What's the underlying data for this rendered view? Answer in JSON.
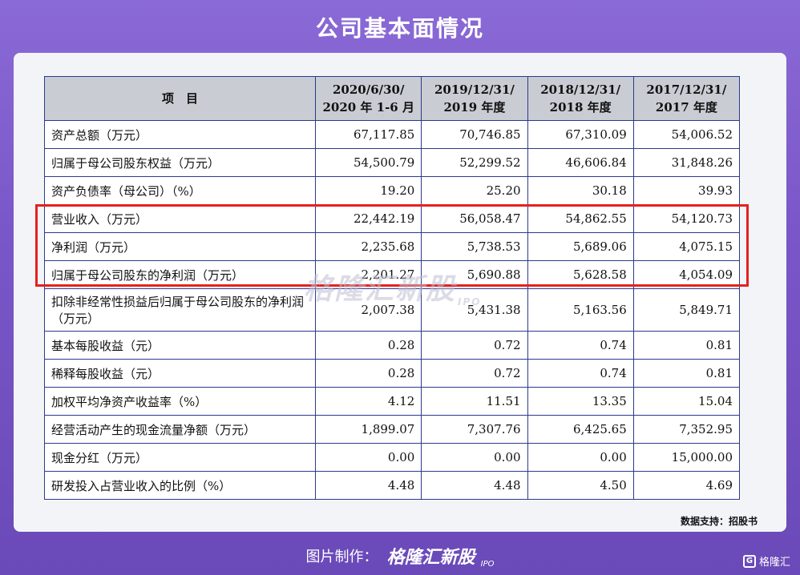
{
  "title": "公司基本面情况",
  "table": {
    "header": {
      "item": "项　目",
      "cols": [
        {
          "l1": "2020/6/30/",
          "l2": "2020 年 1-6 月"
        },
        {
          "l1": "2019/12/31/",
          "l2": "2019 年度"
        },
        {
          "l1": "2018/12/31/",
          "l2": "2018 年度"
        },
        {
          "l1": "2017/12/31/",
          "l2": "2017 年度"
        }
      ]
    },
    "rows": [
      {
        "label": "资产总额（万元）",
        "values": [
          "67,117.85",
          "70,746.85",
          "67,310.09",
          "54,006.52"
        ]
      },
      {
        "label": "归属于母公司股东权益（万元）",
        "values": [
          "54,500.79",
          "52,299.52",
          "46,606.84",
          "31,848.26"
        ]
      },
      {
        "label": "资产负债率（母公司）（%）",
        "values": [
          "19.20",
          "25.20",
          "30.18",
          "39.93"
        ]
      },
      {
        "label": "营业收入（万元）",
        "values": [
          "22,442.19",
          "56,058.47",
          "54,862.55",
          "54,120.73"
        ]
      },
      {
        "label": "净利润（万元）",
        "values": [
          "2,235.68",
          "5,738.53",
          "5,689.06",
          "4,075.15"
        ]
      },
      {
        "label": "归属于母公司股东的净利润（万元）",
        "values": [
          "2,201.27",
          "5,690.88",
          "5,628.58",
          "4,054.09"
        ]
      },
      {
        "label": "扣除非经常性损益后归属于母公司股东的净利润（万元）",
        "values": [
          "2,007.38",
          "5,431.38",
          "5,163.56",
          "5,849.71"
        ]
      },
      {
        "label": "基本每股收益（元）",
        "values": [
          "0.28",
          "0.72",
          "0.74",
          "0.81"
        ]
      },
      {
        "label": "稀释每股收益（元）",
        "values": [
          "0.28",
          "0.72",
          "0.74",
          "0.81"
        ]
      },
      {
        "label": "加权平均净资产收益率（%）",
        "values": [
          "4.12",
          "11.51",
          "13.35",
          "15.04"
        ]
      },
      {
        "label": "经营活动产生的现金流量净额（万元）",
        "values": [
          "1,899.07",
          "7,307.76",
          "6,425.65",
          "7,352.95"
        ]
      },
      {
        "label": "现金分红（万元）",
        "values": [
          "0.00",
          "0.00",
          "0.00",
          "15,000.00"
        ]
      },
      {
        "label": "研发投入占营业收入的比例（%）",
        "values": [
          "4.48",
          "4.48",
          "4.50",
          "4.69"
        ]
      }
    ]
  },
  "watermark": {
    "text": "格隆汇新股",
    "ipo": "IPO"
  },
  "source": "数据支持：招股书",
  "footer": {
    "label": "图片制作：",
    "brand": "格隆汇新股",
    "ipo": "IPO"
  },
  "corner_logo": {
    "mark": "G",
    "text": "格隆汇"
  },
  "colors": {
    "highlight": "#e52121",
    "border": "#2b3a8c",
    "header_bg": "#c9ccd3"
  }
}
